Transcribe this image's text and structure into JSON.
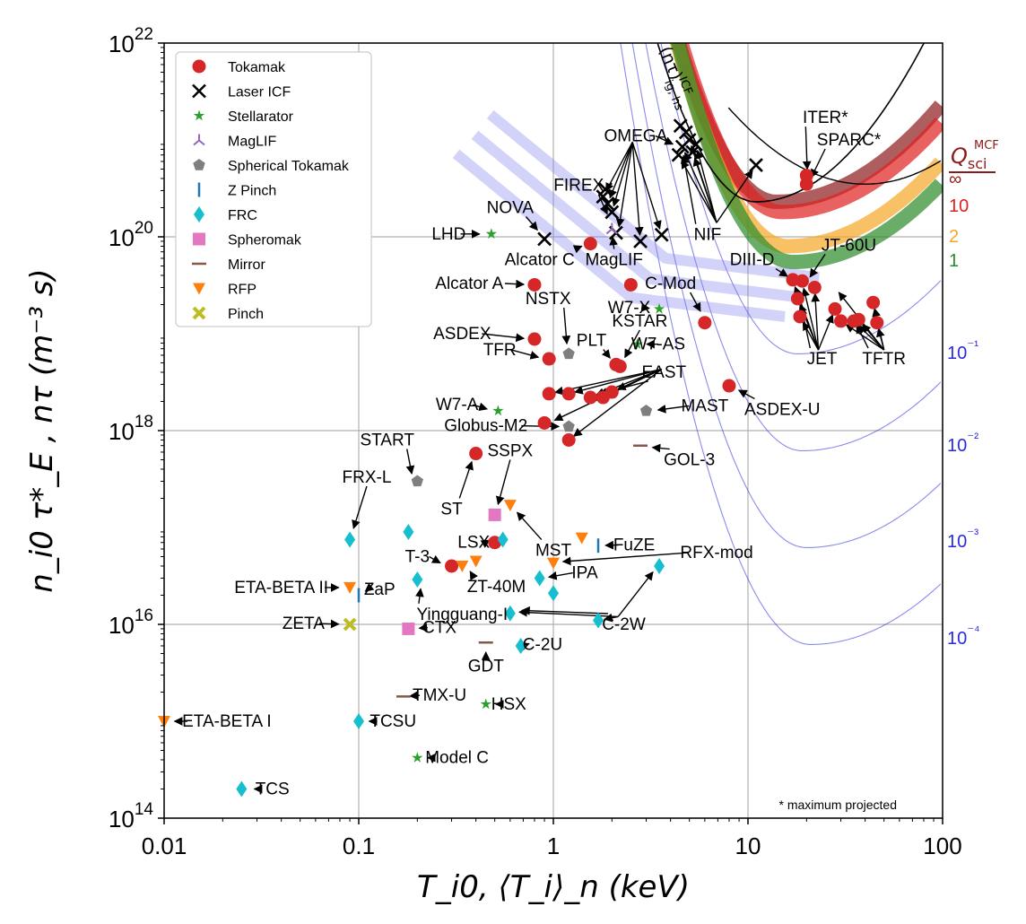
{
  "chart_data": {
    "type": "scatter",
    "title": "",
    "xlabel": "T_i0, ⟨T_i⟩_n (keV)",
    "ylabel": "n_i0 τ*_E ,  nτ (m⁻³ s)",
    "xscale": "log",
    "yscale": "log",
    "xlim": [
      0.01,
      100
    ],
    "ylim": [
      100000000000000.0,
      1e+22
    ],
    "x_tick_labels": [
      "0.01",
      "0.1",
      "1",
      "10",
      "100"
    ],
    "y_tick_labels": [
      {
        "base": "10",
        "exp": "14"
      },
      {
        "base": "10",
        "exp": "16"
      },
      {
        "base": "10",
        "exp": "18"
      },
      {
        "base": "10",
        "exp": "20"
      },
      {
        "base": "10",
        "exp": "22"
      }
    ],
    "grid": true,
    "legend_position": "top-left",
    "legend": [
      {
        "key": "tokamak",
        "label": "Tokamak",
        "marker": "circle",
        "color": "#d62728"
      },
      {
        "key": "icf",
        "label": "Laser ICF",
        "marker": "x",
        "color": "#000000"
      },
      {
        "key": "stellarator",
        "label": "Stellarator",
        "marker": "star",
        "color": "#2ca02c"
      },
      {
        "key": "maglif",
        "label": "MagLIF",
        "marker": "tri",
        "color": "#9467bd"
      },
      {
        "key": "st",
        "label": "Spherical Tokamak",
        "marker": "pentagon",
        "color": "#7f7f7f"
      },
      {
        "key": "zpinch",
        "label": "Z Pinch",
        "marker": "vline",
        "color": "#1f77b4"
      },
      {
        "key": "frc",
        "label": "FRC",
        "marker": "diamond",
        "color": "#17becf"
      },
      {
        "key": "spheromak",
        "label": "Spheromak",
        "marker": "square",
        "color": "#e377c2"
      },
      {
        "key": "mirror",
        "label": "Mirror",
        "marker": "hline",
        "color": "#8c564b"
      },
      {
        "key": "rfp",
        "label": "RFP",
        "marker": "tridown",
        "color": "#ff7f0e"
      },
      {
        "key": "pinch",
        "label": "Pinch",
        "marker": "xbold",
        "color": "#bcbd22"
      }
    ],
    "points": [
      {
        "cat": "tokamak",
        "x": 0.8,
        "y": 3.2e+19
      },
      {
        "cat": "tokamak",
        "x": 1.55,
        "y": 8.5e+19
      },
      {
        "cat": "tokamak",
        "x": 2.5,
        "y": 3.2e+19
      },
      {
        "cat": "tokamak",
        "x": 6.0,
        "y": 1.3e+19
      },
      {
        "cat": "tokamak",
        "x": 0.8,
        "y": 8.8e+18
      },
      {
        "cat": "tokamak",
        "x": 0.95,
        "y": 5.5e+18
      },
      {
        "cat": "tokamak",
        "x": 0.95,
        "y": 2.4e+18
      },
      {
        "cat": "tokamak",
        "x": 1.2,
        "y": 2.4e+18
      },
      {
        "cat": "tokamak",
        "x": 1.55,
        "y": 2.2e+18
      },
      {
        "cat": "tokamak",
        "x": 1.8,
        "y": 2.2e+18
      },
      {
        "cat": "tokamak",
        "x": 2.0,
        "y": 2.5e+18
      },
      {
        "cat": "tokamak",
        "x": 2.1,
        "y": 4.8e+18
      },
      {
        "cat": "tokamak",
        "x": 2.2,
        "y": 4.6e+18
      },
      {
        "cat": "tokamak",
        "x": 0.9,
        "y": 1.2e+18
      },
      {
        "cat": "tokamak",
        "x": 1.2,
        "y": 8e+17
      },
      {
        "cat": "tokamak",
        "x": 0.4,
        "y": 5.8e+17
      },
      {
        "cat": "tokamak",
        "x": 0.5,
        "y": 7e+16
      },
      {
        "cat": "tokamak",
        "x": 0.3,
        "y": 4e+16
      },
      {
        "cat": "tokamak",
        "x": 8.0,
        "y": 2.9e+18
      },
      {
        "cat": "tokamak",
        "x": 17.0,
        "y": 3.6e+19
      },
      {
        "cat": "tokamak",
        "x": 19.0,
        "y": 3.5e+19
      },
      {
        "cat": "tokamak",
        "x": 22.0,
        "y": 3e+19
      },
      {
        "cat": "tokamak",
        "x": 18.0,
        "y": 2.3e+19
      },
      {
        "cat": "tokamak",
        "x": 18.5,
        "y": 1.5e+19
      },
      {
        "cat": "tokamak",
        "x": 28.0,
        "y": 1.8e+19
      },
      {
        "cat": "tokamak",
        "x": 30.0,
        "y": 1.35e+19
      },
      {
        "cat": "tokamak",
        "x": 35.0,
        "y": 1.35e+19
      },
      {
        "cat": "tokamak",
        "x": 37.0,
        "y": 1.4e+19
      },
      {
        "cat": "tokamak",
        "x": 44.0,
        "y": 2.1e+19
      },
      {
        "cat": "tokamak",
        "x": 46.0,
        "y": 1.3e+19
      },
      {
        "cat": "tokamak",
        "x": 20.0,
        "y": 4.3e+20
      },
      {
        "cat": "tokamak",
        "x": 20.0,
        "y": 3.5e+20
      },
      {
        "cat": "icf",
        "x": 0.9,
        "y": 9.5e+19
      },
      {
        "cat": "icf",
        "x": 1.8,
        "y": 2.6e+20
      },
      {
        "cat": "icf",
        "x": 1.9,
        "y": 2.2e+20
      },
      {
        "cat": "icf",
        "x": 2.0,
        "y": 1.8e+20
      },
      {
        "cat": "icf",
        "x": 1.85,
        "y": 3.1e+20
      },
      {
        "cat": "icf",
        "x": 2.1,
        "y": 1.1e+20
      },
      {
        "cat": "icf",
        "x": 2.8,
        "y": 9e+19
      },
      {
        "cat": "icf",
        "x": 3.6,
        "y": 1.05e+20
      },
      {
        "cat": "icf",
        "x": 4.5,
        "y": 1.4e+21
      },
      {
        "cat": "icf",
        "x": 4.8,
        "y": 1.2e+21
      },
      {
        "cat": "icf",
        "x": 5.0,
        "y": 1e+21
      },
      {
        "cat": "icf",
        "x": 4.6,
        "y": 8.5e+20
      },
      {
        "cat": "icf",
        "x": 5.2,
        "y": 7.5e+20
      },
      {
        "cat": "icf",
        "x": 4.4,
        "y": 7e+20
      },
      {
        "cat": "icf",
        "x": 5.4,
        "y": 9e+20
      },
      {
        "cat": "icf",
        "x": 11.0,
        "y": 5.5e+20
      },
      {
        "cat": "stellarator",
        "x": 0.48,
        "y": 1.07e+20
      },
      {
        "cat": "stellarator",
        "x": 3.5,
        "y": 1.8e+19
      },
      {
        "cat": "stellarator",
        "x": 2.7,
        "y": 7.8e+18
      },
      {
        "cat": "stellarator",
        "x": 0.52,
        "y": 1.6e+18
      },
      {
        "cat": "stellarator",
        "x": 0.45,
        "y": 1500000000000000.0
      },
      {
        "cat": "stellarator",
        "x": 0.2,
        "y": 420000000000000.0
      },
      {
        "cat": "maglif",
        "x": 2.0,
        "y": 1.2e+20
      },
      {
        "cat": "st",
        "x": 1.2,
        "y": 6.2e+18
      },
      {
        "cat": "st",
        "x": 1.2,
        "y": 1.1e+18
      },
      {
        "cat": "st",
        "x": 3.0,
        "y": 1.6e+18
      },
      {
        "cat": "st",
        "x": 0.2,
        "y": 3e+17
      },
      {
        "cat": "zpinch",
        "x": 0.1,
        "y": 2e+16
      },
      {
        "cat": "zpinch",
        "x": 1.7,
        "y": 6.5e+16
      },
      {
        "cat": "frc",
        "x": 0.09,
        "y": 7.5e+16
      },
      {
        "cat": "frc",
        "x": 0.18,
        "y": 9e+16
      },
      {
        "cat": "frc",
        "x": 0.55,
        "y": 7.5e+16
      },
      {
        "cat": "frc",
        "x": 0.2,
        "y": 2.9e+16
      },
      {
        "cat": "frc",
        "x": 0.85,
        "y": 3e+16
      },
      {
        "cat": "frc",
        "x": 1.0,
        "y": 2.1e+16
      },
      {
        "cat": "frc",
        "x": 0.6,
        "y": 1.3e+16
      },
      {
        "cat": "frc",
        "x": 1.7,
        "y": 1.1e+16
      },
      {
        "cat": "frc",
        "x": 3.5,
        "y": 4e+16
      },
      {
        "cat": "frc",
        "x": 0.68,
        "y": 6000000000000000.0
      },
      {
        "cat": "frc",
        "x": 0.1,
        "y": 1000000000000000.0
      },
      {
        "cat": "frc",
        "x": 0.025,
        "y": 200000000000000.0
      },
      {
        "cat": "spheromak",
        "x": 0.5,
        "y": 1.35e+17
      },
      {
        "cat": "spheromak",
        "x": 0.18,
        "y": 9000000000000000.0
      },
      {
        "cat": "mirror",
        "x": 2.8,
        "y": 7e+17
      },
      {
        "cat": "mirror",
        "x": 0.45,
        "y": 6500000000000000.0
      },
      {
        "cat": "mirror",
        "x": 0.17,
        "y": 1800000000000000.0
      },
      {
        "cat": "rfp",
        "x": 0.6,
        "y": 1.7e+17
      },
      {
        "cat": "rfp",
        "x": 1.4,
        "y": 7.8e+16
      },
      {
        "cat": "rfp",
        "x": 0.4,
        "y": 4.5e+16
      },
      {
        "cat": "rfp",
        "x": 0.34,
        "y": 4e+16
      },
      {
        "cat": "rfp",
        "x": 1.0,
        "y": 4.3e+16
      },
      {
        "cat": "rfp",
        "x": 0.09,
        "y": 2.4e+16
      },
      {
        "cat": "rfp",
        "x": 0.01,
        "y": 1000000000000000.0
      },
      {
        "cat": "pinch",
        "x": 0.09,
        "y": 1e+16
      }
    ],
    "annotations": [
      {
        "text": "LHD",
        "tx": 0.29,
        "ty": 1.07e+20,
        "ax": 0.45,
        "ay": 1.07e+20
      },
      {
        "text": "NOVA",
        "tx": 0.6,
        "ty": 2e+20,
        "ax": 0.87,
        "ay": 1.05e+20
      },
      {
        "text": "FIREX",
        "tx": 1.35,
        "ty": 3.4e+20,
        "ax": 1.95,
        "ay": 1.5e+20
      },
      {
        "text": "OMEGA",
        "tx": 2.65,
        "ty": 1.1e+21,
        "ax": 4.4,
        "ay": 8.5e+20
      },
      {
        "text": "Alcator C",
        "tx": 0.85,
        "ty": 5.8e+19,
        "ax": 1.5,
        "ay": 8.5e+19
      },
      {
        "text": "MagLIF",
        "tx": 2.05,
        "ty": 5.8e+19,
        "ax": 2.0,
        "ay": 1.15e+20
      },
      {
        "text": "NIF",
        "tx": 6.2,
        "ty": 1.05e+20,
        "ax": 4.6,
        "ay": 8e+20
      },
      {
        "text": "Alcator A",
        "tx": 0.37,
        "ty": 3.3e+19,
        "ax": 0.76,
        "ay": 3.2e+19
      },
      {
        "text": "C-Mod",
        "tx": 4.0,
        "ty": 3.3e+19,
        "ax": 5.9,
        "ay": 1.5e+19
      },
      {
        "text": "NSTX",
        "tx": 0.94,
        "ty": 2.3e+19,
        "ax": 1.18,
        "ay": 6.8e+18
      },
      {
        "text": "W7-X",
        "tx": 2.45,
        "ty": 1.85e+19,
        "ax": 3.35,
        "ay": 1.8e+19
      },
      {
        "text": "KSTAR",
        "tx": 2.78,
        "ty": 1.35e+19,
        "ax": 2.25,
        "ay": 5e+18
      },
      {
        "text": "ASDEX",
        "tx": 0.34,
        "ty": 1e+19,
        "ax": 0.76,
        "ay": 8.8e+18
      },
      {
        "text": "PLT",
        "tx": 1.57,
        "ty": 8.5e+18,
        "ax": 2.05,
        "ay": 5e+18
      },
      {
        "text": "W7-AS",
        "tx": 3.46,
        "ty": 7.8e+18,
        "ax": 2.8,
        "ay": 7.8e+18
      },
      {
        "text": "TFR",
        "tx": 0.53,
        "ty": 6.8e+18,
        "ax": 0.9,
        "ay": 5.5e+18
      },
      {
        "text": "EAST",
        "tx": 3.7,
        "ty": 4e+18,
        "ax": 1.6,
        "ay": 2.3e+18
      },
      {
        "text": "MAST",
        "tx": 6.0,
        "ty": 1.8e+18,
        "ax": 3.2,
        "ay": 1.6e+18
      },
      {
        "text": "ASDEX-U",
        "tx": 15.0,
        "ty": 1.65e+18,
        "ax": 8.4,
        "ay": 2.8e+18
      },
      {
        "text": "W7-A",
        "tx": 0.32,
        "ty": 1.85e+18,
        "ax": 0.49,
        "ay": 1.6e+18
      },
      {
        "text": "Globus-M2",
        "tx": 0.45,
        "ty": 1.12e+18,
        "ax": 1.15,
        "ay": 1.1e+18
      },
      {
        "text": "START",
        "tx": 0.14,
        "ty": 8e+17,
        "ax": 0.19,
        "ay": 3.1e+17
      },
      {
        "text": "SSPX",
        "tx": 0.6,
        "ty": 6.2e+17,
        "ax": 0.51,
        "ay": 1.5e+17
      },
      {
        "text": "GOL-3",
        "tx": 5.0,
        "ty": 5e+17,
        "ax": 3.0,
        "ay": 6.8e+17
      },
      {
        "text": "FRX-L",
        "tx": 0.11,
        "ty": 3.3e+17,
        "ax": 0.092,
        "ay": 8.5e+16
      },
      {
        "text": "ST",
        "tx": 0.3,
        "ty": 1.55e+17,
        "ax": 0.39,
        "ay": 5.5e+17
      },
      {
        "text": "MST",
        "tx": 1.0,
        "ty": 5.8e+16,
        "ax": 0.62,
        "ay": 1.6e+17
      },
      {
        "text": "FuZE",
        "tx": 2.6,
        "ty": 6.6e+16,
        "ax": 1.72,
        "ay": 6.5e+16
      },
      {
        "text": "LSX",
        "tx": 0.39,
        "ty": 7e+16,
        "ax": 0.5,
        "ay": 8e+16
      },
      {
        "text": "RFX-mod",
        "tx": 6.9,
        "ty": 5.5e+16,
        "ax": 1.04,
        "ay": 4.4e+16
      },
      {
        "text": "T-3",
        "tx": 0.2,
        "ty": 5e+16,
        "ax": 0.28,
        "ay": 4e+16
      },
      {
        "text": "IPA",
        "tx": 1.45,
        "ty": 3.4e+16,
        "ax": 0.88,
        "ay": 3e+16
      },
      {
        "text": "ZT-40M",
        "tx": 0.51,
        "ty": 2.45e+16,
        "ax": 0.36,
        "ay": 4e+16
      },
      {
        "text": "ETA-BETA II",
        "tx": 0.04,
        "ty": 2.4e+16,
        "ax": 0.085,
        "ay": 2.4e+16
      },
      {
        "text": "ZaP",
        "tx": 0.128,
        "ty": 2.3e+16,
        "ax": 0.102,
        "ay": 2e+16
      },
      {
        "text": "Yingguang-I",
        "tx": 0.34,
        "ty": 1.27e+16,
        "ax": 0.21,
        "ay": 2.7e+16
      },
      {
        "text": "C-2W",
        "tx": 2.3,
        "ty": 1e+16,
        "ax": 0.64,
        "ay": 1.4e+16
      },
      {
        "text": "ZETA",
        "tx": 0.052,
        "ty": 1.02e+16,
        "ax": 0.085,
        "ay": 1e+16
      },
      {
        "text": "CTX",
        "tx": 0.26,
        "ty": 9300000000000000.0,
        "ax": 0.19,
        "ay": 9000000000000000.0
      },
      {
        "text": "C-2U",
        "tx": 0.88,
        "ty": 6200000000000000.0,
        "ax": 0.7,
        "ay": 6000000000000000.0
      },
      {
        "text": "GDT",
        "tx": 0.45,
        "ty": 3700000000000000.0,
        "ax": 0.45,
        "ay": 6000000000000000.0
      },
      {
        "text": "TMX-U",
        "tx": 0.26,
        "ty": 1850000000000000.0,
        "ax": 0.17,
        "ay": 1800000000000000.0
      },
      {
        "text": "HSX",
        "tx": 0.59,
        "ty": 1500000000000000.0,
        "ax": 0.47,
        "ay": 1500000000000000.0
      },
      {
        "text": "ETA-BETA I",
        "tx": 0.021,
        "ty": 1000000000000000.0,
        "ax": 0.0105,
        "ay": 1000000000000000.0
      },
      {
        "text": "TCSU",
        "tx": 0.15,
        "ty": 1000000000000000.0,
        "ax": 0.105,
        "ay": 1000000000000000.0
      },
      {
        "text": "Model C",
        "tx": 0.32,
        "ty": 420000000000000.0,
        "ax": 0.21,
        "ay": 420000000000000.0
      },
      {
        "text": "TCS",
        "tx": 0.036,
        "ty": 200000000000000.0,
        "ax": 0.027,
        "ay": 200000000000000.0
      },
      {
        "text": "DIII-D",
        "tx": 10.5,
        "ty": 5.8e+19,
        "ax": 17.0,
        "ay": 3.6e+19
      },
      {
        "text": "JT-60U",
        "tx": 33.0,
        "ty": 8.2e+19,
        "ax": 20.0,
        "ay": 3.4e+19
      },
      {
        "text": "JET",
        "tx": 24.0,
        "ty": 5.5e+18,
        "ax": 18.5,
        "ay": 2.2e+19
      },
      {
        "text": "TFTR",
        "tx": 50.0,
        "ty": 5.5e+18,
        "ax": 35.0,
        "ay": 1.4e+19
      },
      {
        "text": "ITER*",
        "tx": 25.0,
        "ty": 1.7e+21,
        "ax": 20.2,
        "ay": 4.3e+20
      },
      {
        "text": "SPARC*",
        "tx": 33.0,
        "ty": 1e+21,
        "ax": 20.5,
        "ay": 3.6e+20
      }
    ],
    "multi_arrows": [
      {
        "tx": 2.55,
        "ty": 9.5e+20,
        "targets": [
          [
            1.8,
            2.6e+20
          ],
          [
            1.9,
            2.2e+20
          ],
          [
            2.0,
            1.8e+20
          ],
          [
            2.15,
            1.1e+20
          ],
          [
            2.8,
            9e+19
          ],
          [
            3.6,
            1.05e+20
          ]
        ]
      },
      {
        "tx": 6.9,
        "ty": 1.4e+20,
        "targets": [
          [
            5.0,
            1e+21
          ],
          [
            4.6,
            8.5e+20
          ],
          [
            5.2,
            7.5e+20
          ],
          [
            4.4,
            7e+20
          ],
          [
            5.4,
            9e+20
          ],
          [
            11.0,
            5.5e+20
          ]
        ]
      },
      {
        "tx": 3.6,
        "ty": 4.3e+18,
        "targets": [
          [
            0.95,
            2.4e+18
          ],
          [
            1.2,
            2.4e+18
          ],
          [
            1.55,
            2.2e+18
          ],
          [
            1.8,
            2.2e+18
          ],
          [
            2.0,
            2.5e+18
          ],
          [
            0.95,
            1.2e+18
          ],
          [
            1.2,
            8e+17
          ]
        ]
      },
      {
        "tx": 23.0,
        "ty": 6.8e+18,
        "targets": [
          [
            17.0,
            3.5e+19
          ],
          [
            19.0,
            3.4e+19
          ],
          [
            18.0,
            2.3e+19
          ],
          [
            18.5,
            1.5e+19
          ],
          [
            28.0,
            1.8e+19
          ],
          [
            22.0,
            3e+19
          ]
        ]
      },
      {
        "tx": 50.0,
        "ty": 6.8e+18,
        "targets": [
          [
            30.0,
            1.35e+19
          ],
          [
            35.0,
            1.35e+19
          ],
          [
            37.0,
            1.4e+19
          ],
          [
            44.0,
            2.1e+19
          ],
          [
            46.0,
            1.3e+19
          ],
          [
            28.0,
            3e+19
          ]
        ]
      },
      {
        "tx": 2.15,
        "ty": 1.2e+16,
        "targets": [
          [
            0.62,
            1.35e+16
          ],
          [
            1.7,
            1.1e+16
          ],
          [
            3.4,
            3.9e+16
          ]
        ]
      }
    ],
    "q_curves": [
      {
        "label": "∞",
        "color": "#8b1a1a",
        "ymin": 2.3e+20,
        "kind": "band"
      },
      {
        "label": "10",
        "color": "#e02020",
        "ymin": 1.8e+20,
        "kind": "band"
      },
      {
        "label": "2",
        "color": "#f5a623",
        "ymin": 8e+19,
        "kind": "band"
      },
      {
        "label": "1",
        "color": "#2a8a2a",
        "ymin": 5.5e+19,
        "kind": "band"
      },
      {
        "label": "10⁻¹",
        "color": "#2a2ae0",
        "ymin": 6.2e+18,
        "kind": "line"
      },
      {
        "label": "10⁻²",
        "color": "#2a2ae0",
        "ymin": 6.2e+17,
        "kind": "line"
      },
      {
        "label": "10⁻³",
        "color": "#2a2ae0",
        "ymin": 6.2e+16,
        "kind": "line"
      },
      {
        "label": "10⁻⁴",
        "color": "#2a2ae0",
        "ymin": 6200000000000000.0,
        "kind": "line"
      }
    ],
    "q_label_title": "Q",
    "q_label_sub": "sci",
    "q_label_sup": "MCF",
    "icf_label": "(nτ)",
    "icf_label_sup": "ICF",
    "icf_label_sub": "ig, hs",
    "footnote": "* maximum projected"
  }
}
